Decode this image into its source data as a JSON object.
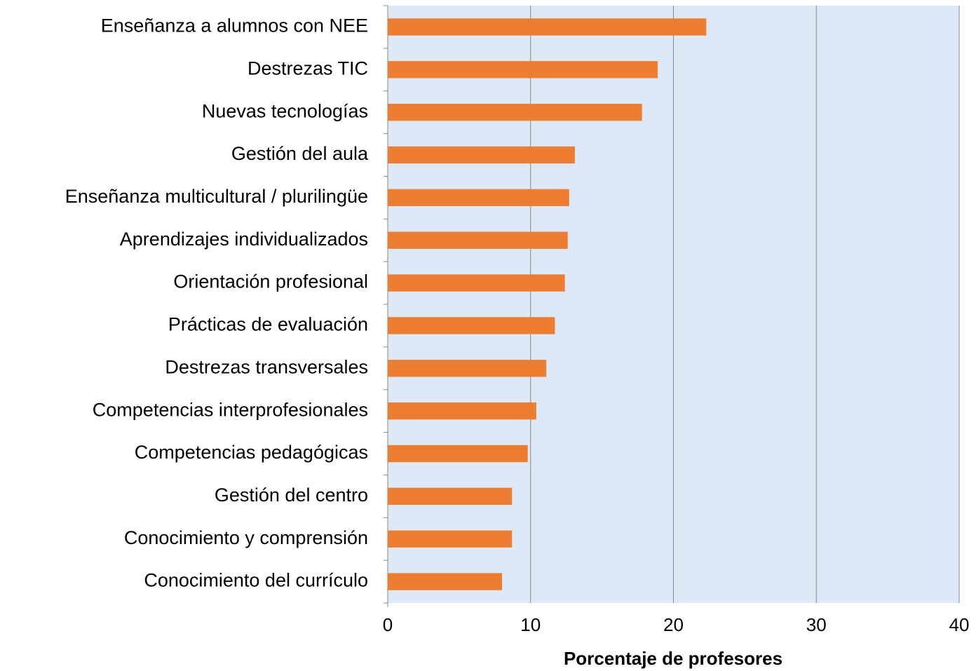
{
  "chart_data": {
    "type": "bar",
    "orientation": "horizontal",
    "x_label": "Porcentaje de profesores",
    "categories": [
      "Enseñanza a alumnos con NEE",
      "Destrezas TIC",
      "Nuevas tecnologías",
      "Gestión del aula",
      "Enseñanza multicultural / plurilingüe",
      "Aprendizajes individualizados",
      "Orientación profesional",
      "Prácticas de evaluación",
      "Destrezas transversales",
      "Competencias interprofesionales",
      "Competencias pedagógicas",
      "Gestión del centro",
      "Conocimiento y comprensión",
      "Conocimiento del currículo"
    ],
    "values": [
      22.3,
      18.9,
      17.8,
      13.1,
      12.7,
      12.6,
      12.4,
      11.7,
      11.1,
      10.4,
      9.8,
      8.7,
      8.7,
      8.0
    ],
    "color": "#ed7d31",
    "background": "#dde9f6",
    "xlim": [
      0,
      40
    ],
    "xticks": [
      0,
      10,
      20,
      30,
      40
    ],
    "grid": true
  }
}
